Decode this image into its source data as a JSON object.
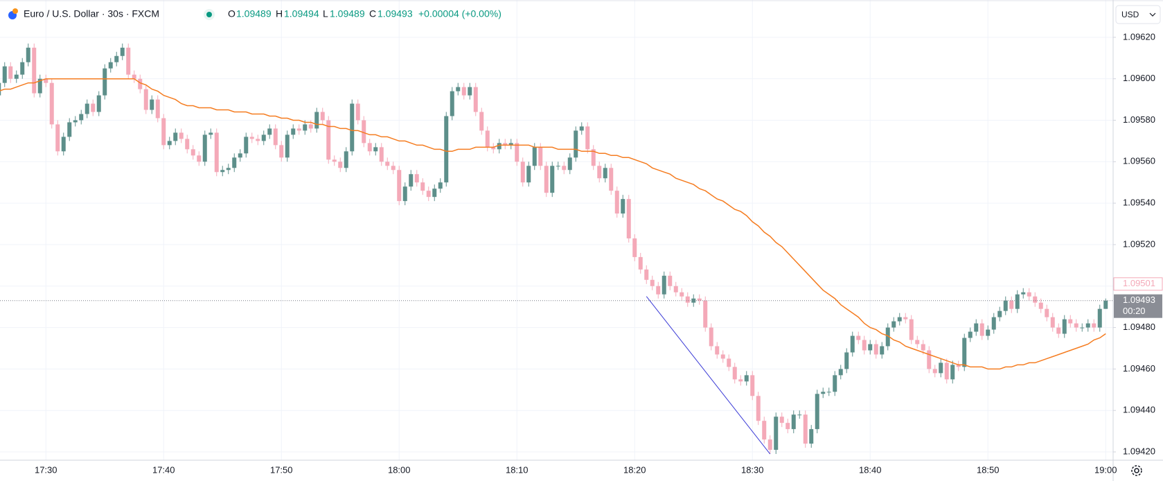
{
  "header": {
    "symbol": "Euro / U.S. Dollar · 30s · FXCM",
    "o_label": "O",
    "h_label": "H",
    "l_label": "L",
    "c_label": "C",
    "change": "+0.00004 (+0.00%)",
    "currency": "USD",
    "countdown": "00:20"
  },
  "chart_data": {
    "type": "candlestick",
    "up_color": "#5d8f8a",
    "down_color": "#f4a9b8",
    "grid": true,
    "ylim": [
      1.09416,
      1.09638
    ],
    "yticks": [
      {
        "value": 1.0962,
        "label": "1.09620"
      },
      {
        "value": 1.096,
        "label": "1.09600"
      },
      {
        "value": 1.0958,
        "label": "1.09580"
      },
      {
        "value": 1.0956,
        "label": "1.09560"
      },
      {
        "value": 1.0954,
        "label": "1.09540"
      },
      {
        "value": 1.0952,
        "label": "1.09520"
      },
      {
        "value": 1.095,
        "label": "1.09500"
      },
      {
        "value": 1.0948,
        "label": "1.09480"
      },
      {
        "value": 1.0946,
        "label": "1.09460"
      },
      {
        "value": 1.0944,
        "label": "1.09440"
      },
      {
        "value": 1.0942,
        "label": "1.09420"
      }
    ],
    "categories": [
      null,
      null,
      null,
      null,
      null,
      null,
      null,
      null,
      "17:30",
      null,
      null,
      null,
      null,
      null,
      null,
      null,
      null,
      null,
      null,
      null,
      null,
      null,
      null,
      null,
      null,
      null,
      null,
      null,
      "17:40",
      null,
      null,
      null,
      null,
      null,
      null,
      null,
      null,
      null,
      null,
      null,
      null,
      null,
      null,
      null,
      null,
      null,
      null,
      null,
      "17:50",
      null,
      null,
      null,
      null,
      null,
      null,
      null,
      null,
      null,
      null,
      null,
      null,
      null,
      null,
      null,
      null,
      null,
      null,
      null,
      "18:00",
      null,
      null,
      null,
      null,
      null,
      null,
      null,
      null,
      null,
      null,
      null,
      null,
      null,
      null,
      null,
      null,
      null,
      null,
      null,
      "18:10",
      null,
      null,
      null,
      null,
      null,
      null,
      null,
      null,
      null,
      null,
      null,
      null,
      null,
      null,
      null,
      null,
      null,
      null,
      null,
      "18:20",
      null,
      null,
      null,
      null,
      null,
      null,
      null,
      null,
      null,
      null,
      null,
      null,
      null,
      null,
      null,
      null,
      null,
      null,
      null,
      "18:30",
      null,
      null,
      null,
      null,
      null,
      null,
      null,
      null,
      null,
      null,
      null,
      null,
      null,
      null,
      null,
      null,
      null,
      null,
      null,
      "18:40",
      null,
      null,
      null,
      null,
      null,
      null,
      null,
      null,
      null,
      null,
      null,
      null,
      null,
      null,
      null,
      null,
      null,
      null,
      null,
      "18:50",
      null,
      null,
      null,
      null,
      null,
      null,
      null,
      null,
      null,
      null,
      null,
      null,
      null,
      null,
      null,
      null,
      null,
      null,
      null,
      "19:00"
    ],
    "open": [
      1.09592,
      1.09598,
      1.09606,
      1.096,
      1.09602,
      1.09608,
      1.09615,
      1.09593,
      1.096,
      1.09598,
      1.09578,
      1.09565,
      1.09572,
      1.09579,
      1.0958,
      1.09583,
      1.09588,
      1.09584,
      1.09592,
      1.09605,
      1.09608,
      1.09611,
      1.09615,
      1.09602,
      1.096,
      1.09595,
      1.09585,
      1.0959,
      1.09581,
      1.09568,
      1.0957,
      1.09574,
      1.09571,
      1.09566,
      1.09563,
      1.0956,
      1.09573,
      1.09574,
      1.09555,
      1.09556,
      1.09557,
      1.09562,
      1.09564,
      1.09572,
      1.09571,
      1.0957,
      1.09573,
      1.09576,
      1.09568,
      1.09562,
      1.09573,
      1.09576,
      1.09575,
      1.09578,
      1.09576,
      1.09584,
      1.0958,
      1.09561,
      1.0956,
      1.09557,
      1.09565,
      1.09588,
      1.0958,
      1.09569,
      1.09565,
      1.09567,
      1.0956,
      1.09558,
      1.09556,
      1.09541,
      1.09548,
      1.09554,
      1.0955,
      1.09546,
      1.09543,
      1.09547,
      1.0955,
      1.09582,
      1.09594,
      1.09596,
      1.09592,
      1.09596,
      1.09584,
      1.09575,
      1.09567,
      1.09566,
      1.09569,
      1.09568,
      1.09569,
      1.0956,
      1.0955,
      1.09558,
      1.09567,
      1.09558,
      1.09545,
      1.09558,
      1.09558,
      1.09556,
      1.09562,
      1.09575,
      1.09577,
      1.09566,
      1.09558,
      1.09552,
      1.09557,
      1.09546,
      1.09535,
      1.09542,
      1.09523,
      1.09514,
      1.09508,
      1.09503,
      1.095,
      1.09496,
      1.09505,
      1.095,
      1.09497,
      1.09495,
      1.09492,
      1.09494,
      1.09493,
      1.0948,
      1.09471,
      1.09467,
      1.09465,
      1.09461,
      1.09455,
      1.09454,
      1.09457,
      1.09447,
      1.09435,
      1.09426,
      1.09421,
      1.09437,
      1.09434,
      1.09431,
      1.09438,
      1.09438,
      1.09424,
      1.09431,
      1.09448,
      1.09449,
      1.09449,
      1.09457,
      1.0946,
      1.09468,
      1.09476,
      1.09474,
      1.09469,
      1.09472,
      1.09467,
      1.09471,
      1.0948,
      1.09483,
      1.09485,
      1.09484,
      1.09474,
      1.09472,
      1.09469,
      1.0946,
      1.09458,
      1.09463,
      1.09455,
      1.09462,
      1.09461,
      1.09475,
      1.09478,
      1.09482,
      1.09476,
      1.09479,
      1.09485,
      1.09488,
      1.09493,
      1.09489,
      1.09496,
      1.09497,
      1.09495,
      1.09492,
      1.09489,
      1.09485,
      1.0948,
      1.09477,
      1.09484,
      1.09482,
      1.0948,
      1.0948,
      1.09482,
      1.0948,
      1.09489
    ],
    "high": [
      1.096,
      1.09608,
      1.09608,
      1.09604,
      1.0961,
      1.09617,
      1.09617,
      1.09602,
      1.09602,
      1.096,
      1.0958,
      1.09574,
      1.09581,
      1.09582,
      1.09585,
      1.0959,
      1.0959,
      1.09594,
      1.09607,
      1.0961,
      1.09613,
      1.09617,
      1.09617,
      1.09604,
      1.09602,
      1.09597,
      1.09592,
      1.09592,
      1.09583,
      1.09572,
      1.09576,
      1.09576,
      1.09573,
      1.09568,
      1.09565,
      1.09575,
      1.09576,
      1.09576,
      1.09558,
      1.09559,
      1.09564,
      1.09566,
      1.09574,
      1.09574,
      1.09573,
      1.09575,
      1.09578,
      1.09578,
      1.0957,
      1.09575,
      1.09578,
      1.09578,
      1.0958,
      1.0958,
      1.09586,
      1.09586,
      1.09582,
      1.09563,
      1.09562,
      1.09567,
      1.0959,
      1.0959,
      1.09582,
      1.09571,
      1.09569,
      1.09569,
      1.09562,
      1.0956,
      1.09558,
      1.0955,
      1.09556,
      1.09556,
      1.09552,
      1.09548,
      1.09549,
      1.09552,
      1.09584,
      1.09596,
      1.09598,
      1.09598,
      1.09598,
      1.09598,
      1.09586,
      1.09577,
      1.09569,
      1.09571,
      1.09571,
      1.09571,
      1.09571,
      1.09562,
      1.0956,
      1.09569,
      1.09569,
      1.0956,
      1.0956,
      1.0956,
      1.0956,
      1.09564,
      1.09577,
      1.09579,
      1.09579,
      1.09568,
      1.0956,
      1.09559,
      1.09559,
      1.09548,
      1.09544,
      1.09544,
      1.09525,
      1.09516,
      1.0951,
      1.09505,
      1.09502,
      1.09507,
      1.09507,
      1.09502,
      1.09499,
      1.09497,
      1.09496,
      1.09496,
      1.09495,
      1.09482,
      1.09473,
      1.09469,
      1.09467,
      1.09463,
      1.09457,
      1.09459,
      1.09459,
      1.09449,
      1.09437,
      1.09428,
      1.09439,
      1.09439,
      1.09436,
      1.0944,
      1.0944,
      1.0944,
      1.09433,
      1.0945,
      1.09451,
      1.09451,
      1.09459,
      1.09462,
      1.0947,
      1.09478,
      1.09478,
      1.09476,
      1.09474,
      1.09474,
      1.09473,
      1.09482,
      1.09485,
      1.09487,
      1.09487,
      1.09486,
      1.09476,
      1.09474,
      1.09471,
      1.09462,
      1.09465,
      1.09465,
      1.09464,
      1.09464,
      1.09477,
      1.0948,
      1.09484,
      1.09484,
      1.09481,
      1.09487,
      1.0949,
      1.09495,
      1.09495,
      1.09498,
      1.09499,
      1.09499,
      1.09497,
      1.09494,
      1.09491,
      1.09487,
      1.09482,
      1.09486,
      1.09486,
      1.09484,
      1.09482,
      1.09484,
      1.09484,
      1.09491,
      1.09494
    ],
    "low": [
      1.0959,
      1.09596,
      1.09598,
      1.09598,
      1.096,
      1.09606,
      1.09591,
      1.09591,
      1.09596,
      1.09576,
      1.09563,
      1.09563,
      1.0957,
      1.09577,
      1.09578,
      1.09581,
      1.09582,
      1.09582,
      1.0959,
      1.09603,
      1.09606,
      1.09609,
      1.096,
      1.09598,
      1.09593,
      1.09583,
      1.09583,
      1.09579,
      1.09566,
      1.09566,
      1.09568,
      1.09569,
      1.09564,
      1.09561,
      1.09558,
      1.09558,
      1.09571,
      1.09553,
      1.09553,
      1.09554,
      1.09555,
      1.0956,
      1.09562,
      1.09569,
      1.09568,
      1.09568,
      1.09571,
      1.09566,
      1.0956,
      1.0956,
      1.09571,
      1.09573,
      1.09573,
      1.09574,
      1.09574,
      1.09578,
      1.09559,
      1.09558,
      1.09555,
      1.09555,
      1.09563,
      1.09578,
      1.09567,
      1.09563,
      1.09563,
      1.09558,
      1.09556,
      1.09554,
      1.09539,
      1.09539,
      1.09546,
      1.09548,
      1.09544,
      1.09541,
      1.09541,
      1.09545,
      1.09548,
      1.0958,
      1.09592,
      1.0959,
      1.0959,
      1.09582,
      1.09573,
      1.09565,
      1.09564,
      1.09564,
      1.09566,
      1.09566,
      1.09558,
      1.09548,
      1.09548,
      1.09556,
      1.09556,
      1.09543,
      1.09543,
      1.09556,
      1.09554,
      1.09554,
      1.0956,
      1.09573,
      1.09564,
      1.09556,
      1.0955,
      1.0955,
      1.09544,
      1.09533,
      1.09533,
      1.09521,
      1.09512,
      1.09506,
      1.09501,
      1.09498,
      1.09494,
      1.09494,
      1.09498,
      1.09495,
      1.09493,
      1.0949,
      1.0949,
      1.09491,
      1.09478,
      1.09469,
      1.09465,
      1.09463,
      1.09459,
      1.09453,
      1.09452,
      1.09452,
      1.09445,
      1.09433,
      1.09424,
      1.09419,
      1.09419,
      1.09432,
      1.09429,
      1.09429,
      1.09436,
      1.09422,
      1.09422,
      1.09429,
      1.09446,
      1.09447,
      1.09447,
      1.09455,
      1.09458,
      1.09466,
      1.09472,
      1.09467,
      1.09467,
      1.09465,
      1.09465,
      1.09469,
      1.09478,
      1.09481,
      1.09482,
      1.09472,
      1.0947,
      1.09467,
      1.09458,
      1.09456,
      1.09456,
      1.09453,
      1.09453,
      1.09459,
      1.09459,
      1.09473,
      1.09476,
      1.09474,
      1.09474,
      1.09477,
      1.09483,
      1.09486,
      1.09487,
      1.09487,
      1.09494,
      1.09493,
      1.0949,
      1.09487,
      1.09483,
      1.09478,
      1.09475,
      1.09475,
      1.0948,
      1.09478,
      1.09478,
      1.09478,
      1.09478,
      1.09478,
      1.09489
    ],
    "close": [
      1.09598,
      1.09606,
      1.096,
      1.09602,
      1.09608,
      1.09615,
      1.09593,
      1.096,
      1.09598,
      1.09578,
      1.09565,
      1.09572,
      1.09579,
      1.0958,
      1.09583,
      1.09588,
      1.09584,
      1.09592,
      1.09605,
      1.09608,
      1.09611,
      1.09615,
      1.09602,
      1.096,
      1.09595,
      1.09585,
      1.0959,
      1.09581,
      1.09568,
      1.0957,
      1.09574,
      1.09571,
      1.09566,
      1.09563,
      1.0956,
      1.09573,
      1.09574,
      1.09555,
      1.09556,
      1.09557,
      1.09562,
      1.09564,
      1.09572,
      1.09571,
      1.0957,
      1.09573,
      1.09576,
      1.09568,
      1.09562,
      1.09573,
      1.09576,
      1.09575,
      1.09578,
      1.09576,
      1.09584,
      1.0958,
      1.09561,
      1.0956,
      1.09557,
      1.09565,
      1.09588,
      1.0958,
      1.09569,
      1.09565,
      1.09567,
      1.0956,
      1.09558,
      1.09556,
      1.09541,
      1.09548,
      1.09554,
      1.0955,
      1.09546,
      1.09543,
      1.09547,
      1.0955,
      1.09582,
      1.09594,
      1.09596,
      1.09592,
      1.09596,
      1.09584,
      1.09575,
      1.09567,
      1.09566,
      1.09569,
      1.09568,
      1.09569,
      1.0956,
      1.0955,
      1.09558,
      1.09567,
      1.09558,
      1.09545,
      1.09558,
      1.09558,
      1.09556,
      1.09562,
      1.09575,
      1.09577,
      1.09566,
      1.09558,
      1.09552,
      1.09557,
      1.09546,
      1.09535,
      1.09542,
      1.09523,
      1.09514,
      1.09508,
      1.09503,
      1.095,
      1.09496,
      1.09505,
      1.095,
      1.09497,
      1.09495,
      1.09492,
      1.09494,
      1.09493,
      1.0948,
      1.09471,
      1.09467,
      1.09465,
      1.09461,
      1.09455,
      1.09454,
      1.09457,
      1.09447,
      1.09435,
      1.09426,
      1.09421,
      1.09437,
      1.09434,
      1.09431,
      1.09438,
      1.09438,
      1.09424,
      1.09431,
      1.09448,
      1.09449,
      1.09449,
      1.09457,
      1.0946,
      1.09468,
      1.09476,
      1.09474,
      1.09469,
      1.09472,
      1.09467,
      1.09471,
      1.0948,
      1.09483,
      1.09485,
      1.09484,
      1.09474,
      1.09472,
      1.09469,
      1.0946,
      1.09458,
      1.09463,
      1.09455,
      1.09462,
      1.09461,
      1.09475,
      1.09478,
      1.09482,
      1.09476,
      1.09479,
      1.09485,
      1.09488,
      1.09493,
      1.09489,
      1.09496,
      1.09497,
      1.09495,
      1.09492,
      1.09489,
      1.09485,
      1.0948,
      1.09477,
      1.09484,
      1.09482,
      1.0948,
      1.0948,
      1.09482,
      1.0948,
      1.09489,
      1.09493
    ],
    "moving_average": {
      "type": "line",
      "color": "#f57c20",
      "values": [
        1.09594,
        1.09595,
        1.09595,
        1.09596,
        1.09597,
        1.09598,
        1.09598,
        1.09599,
        1.096,
        1.096,
        1.096,
        1.096,
        1.096,
        1.096,
        1.096,
        1.096,
        1.096,
        1.096,
        1.096,
        1.096,
        1.096,
        1.096,
        1.096,
        1.096,
        1.09598,
        1.09597,
        1.09595,
        1.09594,
        1.09592,
        1.09591,
        1.0959,
        1.09588,
        1.09587,
        1.09587,
        1.09586,
        1.09586,
        1.09586,
        1.09585,
        1.09585,
        1.09585,
        1.09584,
        1.09584,
        1.09584,
        1.09583,
        1.09583,
        1.09583,
        1.09582,
        1.09582,
        1.09581,
        1.09581,
        1.0958,
        1.0958,
        1.09579,
        1.09579,
        1.09578,
        1.09578,
        1.09577,
        1.09577,
        1.09576,
        1.09576,
        1.09575,
        1.09575,
        1.09574,
        1.09573,
        1.09573,
        1.09572,
        1.09572,
        1.09571,
        1.0957,
        1.0957,
        1.09569,
        1.09568,
        1.09568,
        1.09567,
        1.09566,
        1.09566,
        1.09565,
        1.09565,
        1.09566,
        1.09566,
        1.09566,
        1.09567,
        1.09567,
        1.09567,
        1.09567,
        1.09568,
        1.09568,
        1.09568,
        1.09568,
        1.09568,
        1.09568,
        1.09567,
        1.09567,
        1.09567,
        1.09567,
        1.09566,
        1.09566,
        1.09566,
        1.09566,
        1.09565,
        1.09565,
        1.09565,
        1.09564,
        1.09564,
        1.09563,
        1.09563,
        1.09562,
        1.09562,
        1.09561,
        1.0956,
        1.09559,
        1.09557,
        1.09556,
        1.09555,
        1.09554,
        1.09552,
        1.09551,
        1.0955,
        1.09549,
        1.09547,
        1.09546,
        1.09544,
        1.09542,
        1.09541,
        1.09539,
        1.09537,
        1.09536,
        1.09534,
        1.09531,
        1.09529,
        1.09526,
        1.09524,
        1.09521,
        1.09519,
        1.09516,
        1.09513,
        1.0951,
        1.09507,
        1.09504,
        1.09501,
        1.09498,
        1.09496,
        1.09494,
        1.09491,
        1.09489,
        1.09487,
        1.09485,
        1.09482,
        1.0948,
        1.09479,
        1.09477,
        1.09476,
        1.09474,
        1.09473,
        1.09471,
        1.0947,
        1.09469,
        1.09468,
        1.09467,
        1.09466,
        1.09465,
        1.09464,
        1.09463,
        1.09462,
        1.09462,
        1.09461,
        1.09461,
        1.09461,
        1.0946,
        1.0946,
        1.0946,
        1.09461,
        1.09461,
        1.09462,
        1.09462,
        1.09463,
        1.09463,
        1.09464,
        1.09465,
        1.09466,
        1.09467,
        1.09468,
        1.09469,
        1.0947,
        1.09471,
        1.09472,
        1.09474,
        1.09475,
        1.09477
      ]
    },
    "trend_line": {
      "color": "#3a3ad6",
      "x": [
        110,
        131
      ],
      "y": [
        1.09495,
        1.09419
      ]
    },
    "price_marker": {
      "value": 1.09501,
      "color": "#f4a9b8"
    }
  }
}
